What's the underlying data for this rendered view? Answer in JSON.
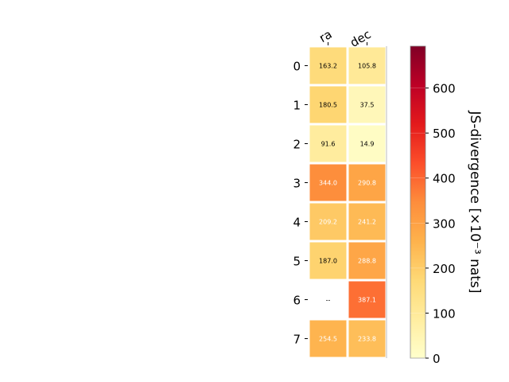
{
  "chart_data": {
    "type": "heatmap",
    "title": "",
    "columns": [
      "ra",
      "dec"
    ],
    "rows": [
      "0",
      "1",
      "2",
      "3",
      "4",
      "5",
      "6",
      "7"
    ],
    "values": [
      [
        163.2,
        105.8
      ],
      [
        180.5,
        37.5
      ],
      [
        91.6,
        14.9
      ],
      [
        344.0,
        290.8
      ],
      [
        209.2,
        241.2
      ],
      [
        187.0,
        288.8
      ],
      [
        null,
        387.1
      ],
      [
        254.5,
        233.8
      ]
    ],
    "cell_labels": [
      [
        "163.2",
        "105.8"
      ],
      [
        "180.5",
        "37.5"
      ],
      [
        "91.6",
        "14.9"
      ],
      [
        "344.0",
        "290.8"
      ],
      [
        "209.2",
        "241.2"
      ],
      [
        "187.0",
        "288.8"
      ],
      [
        "--",
        "387.1"
      ],
      [
        "254.5",
        "233.8"
      ]
    ],
    "colorbar": {
      "label": "JS-divergence [×10⁻³ nats]",
      "range": [
        0,
        693
      ],
      "ticks": [
        "0",
        "100",
        "200",
        "300",
        "400",
        "500",
        "600"
      ],
      "colormap": "YlOrRd"
    }
  }
}
